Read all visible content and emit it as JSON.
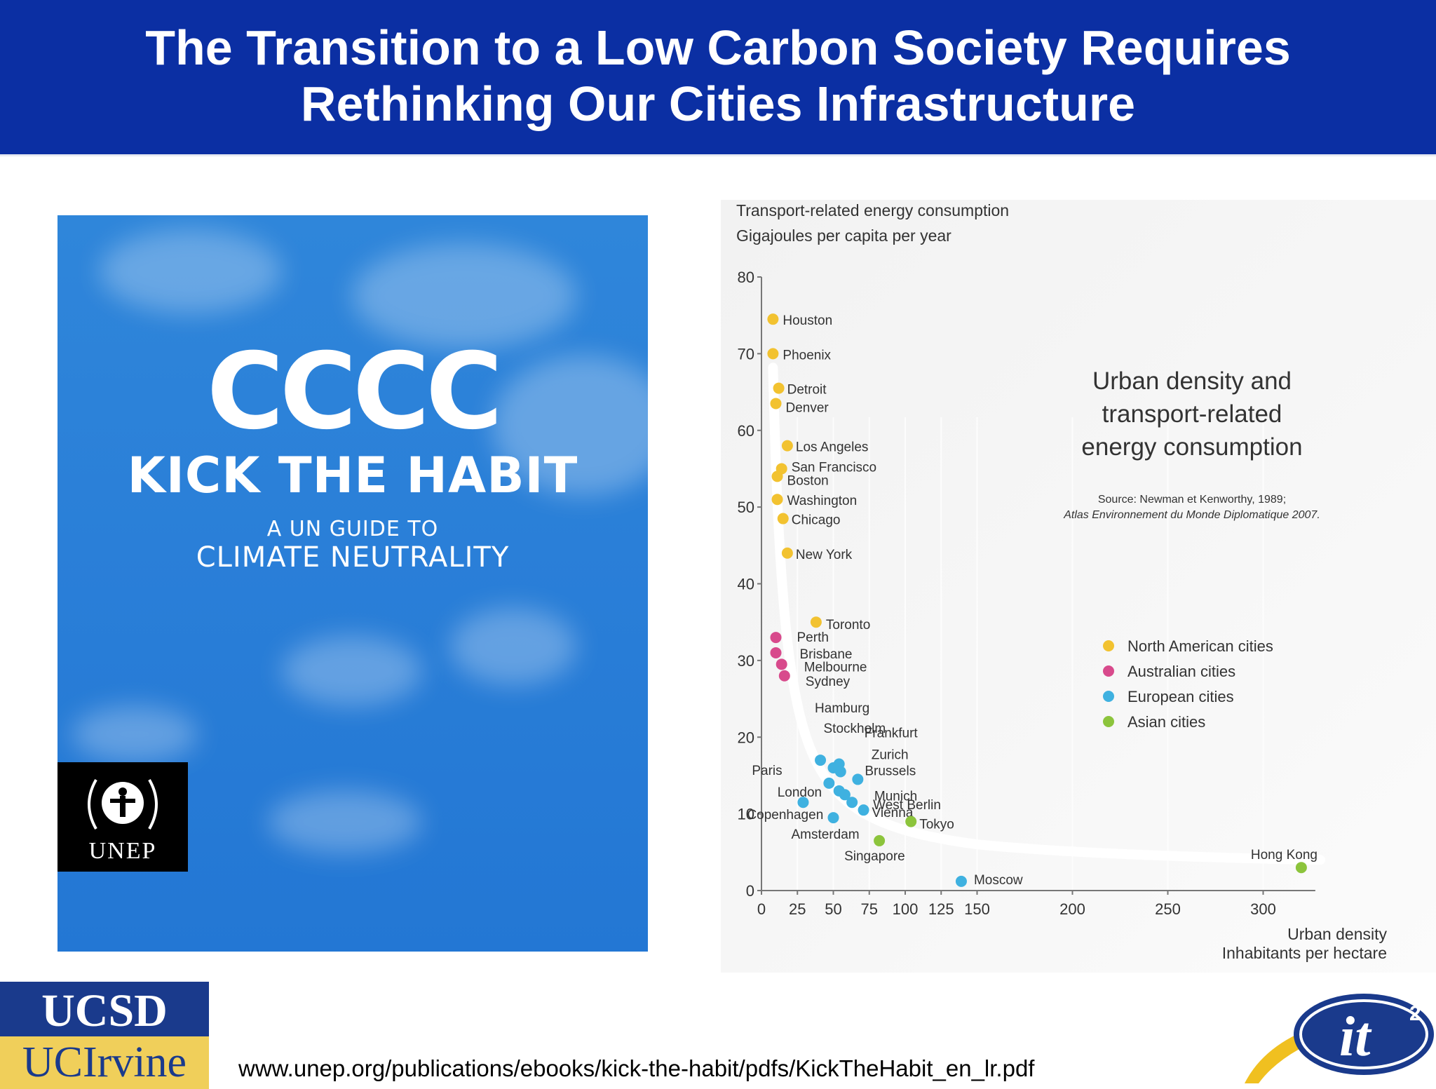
{
  "slide": {
    "title_line1": "The Transition to a Low Carbon Society Requires",
    "title_line2": "Rethinking Our Cities Infrastructure",
    "url": "www.unep.org/publications/ebooks/kick-the-habit/pdfs/KickTheHabit_en_lr.pdf"
  },
  "cover": {
    "logo_text": "CCCC",
    "headline": "KICK THE HABIT",
    "subtitle_line1": "A UN GUIDE TO",
    "subtitle_line2": "CLIMATE NEUTRALITY",
    "publisher": "UNEP"
  },
  "logos": {
    "ucsd": "UCSD",
    "uci": "UCIrvine",
    "it2": "it"
  },
  "chart_data": {
    "type": "scatter",
    "title_lines": [
      "Urban density and",
      "transport-related",
      "energy consumption"
    ],
    "source_line1": "Source: Newman et Kenworthy, 1989;",
    "source_line2": "Atlas Environnement du Monde Diplomatique 2007.",
    "ylabel_line1": "Transport-related energy consumption",
    "ylabel_line2": "Gigajoules per capita per year",
    "xlabel_line1": "Urban density",
    "xlabel_line2": "Inhabitants per hectare",
    "ylim": [
      0,
      80
    ],
    "yticks": [
      0,
      10,
      20,
      30,
      40,
      50,
      60,
      70,
      80
    ],
    "xticks": [
      0,
      25,
      50,
      75,
      100,
      125,
      150,
      200,
      250,
      300
    ],
    "x_scale_note": "piecewise",
    "colors": {
      "north_american": "#f2c230",
      "australian": "#d84a8c",
      "european": "#3fb1e0",
      "asian": "#8cc43c",
      "curve": "#ffffff"
    },
    "legend": [
      {
        "name": "North American cities",
        "group": "north_american"
      },
      {
        "name": "Australian cities",
        "group": "australian"
      },
      {
        "name": "European cities",
        "group": "european"
      },
      {
        "name": "Asian cities",
        "group": "asian"
      }
    ],
    "points": [
      {
        "city": "Houston",
        "x": 8,
        "y": 74.5,
        "group": "north_american"
      },
      {
        "city": "Phoenix",
        "x": 8,
        "y": 70,
        "group": "north_american"
      },
      {
        "city": "Detroit",
        "x": 12,
        "y": 65.5,
        "group": "north_american"
      },
      {
        "city": "Denver",
        "x": 10,
        "y": 63.5,
        "group": "north_american"
      },
      {
        "city": "Los Angeles",
        "x": 18,
        "y": 58,
        "group": "north_american"
      },
      {
        "city": "San Francisco",
        "x": 14,
        "y": 55,
        "group": "north_american"
      },
      {
        "city": "Boston",
        "x": 11,
        "y": 54,
        "group": "north_american"
      },
      {
        "city": "Washington",
        "x": 11,
        "y": 51,
        "group": "north_american"
      },
      {
        "city": "Chicago",
        "x": 15,
        "y": 48.5,
        "group": "north_american"
      },
      {
        "city": "New York",
        "x": 18,
        "y": 44,
        "group": "north_american"
      },
      {
        "city": "Toronto",
        "x": 38,
        "y": 35,
        "group": "north_american"
      },
      {
        "city": "Perth",
        "x": 10,
        "y": 33,
        "group": "australian"
      },
      {
        "city": "Brisbane",
        "x": 10,
        "y": 31,
        "group": "australian"
      },
      {
        "city": "Melbourne",
        "x": 14,
        "y": 29.5,
        "group": "australian"
      },
      {
        "city": "Sydney",
        "x": 16,
        "y": 28,
        "group": "australian"
      },
      {
        "city": "Hamburg",
        "x": 41,
        "y": 17,
        "group": "european"
      },
      {
        "city": "Stockholm",
        "x": 50,
        "y": 16,
        "group": "european"
      },
      {
        "city": "Frankfurt",
        "x": 54,
        "y": 16.5,
        "group": "european"
      },
      {
        "city": "Zurich",
        "x": 55,
        "y": 15.5,
        "group": "european"
      },
      {
        "city": "Brussels",
        "x": 67,
        "y": 14.5,
        "group": "european"
      },
      {
        "city": "Paris",
        "x": 47,
        "y": 14,
        "group": "european"
      },
      {
        "city": "London",
        "x": 54,
        "y": 13,
        "group": "european"
      },
      {
        "city": "Munich",
        "x": 58,
        "y": 12.5,
        "group": "european"
      },
      {
        "city": "West Berlin",
        "x": 63,
        "y": 11.5,
        "group": "european"
      },
      {
        "city": "Vienna",
        "x": 71,
        "y": 10.5,
        "group": "european"
      },
      {
        "city": "Copenhagen",
        "x": 29,
        "y": 11.5,
        "group": "european"
      },
      {
        "city": "Amsterdam",
        "x": 50,
        "y": 9.5,
        "group": "european"
      },
      {
        "city": "Moscow",
        "x": 139,
        "y": 1.2,
        "group": "european"
      },
      {
        "city": "Tokyo",
        "x": 104,
        "y": 9,
        "group": "asian"
      },
      {
        "city": "Singapore",
        "x": 82,
        "y": 6.5,
        "group": "asian"
      },
      {
        "city": "Hong Kong",
        "x": 320,
        "y": 3,
        "group": "asian"
      }
    ]
  }
}
